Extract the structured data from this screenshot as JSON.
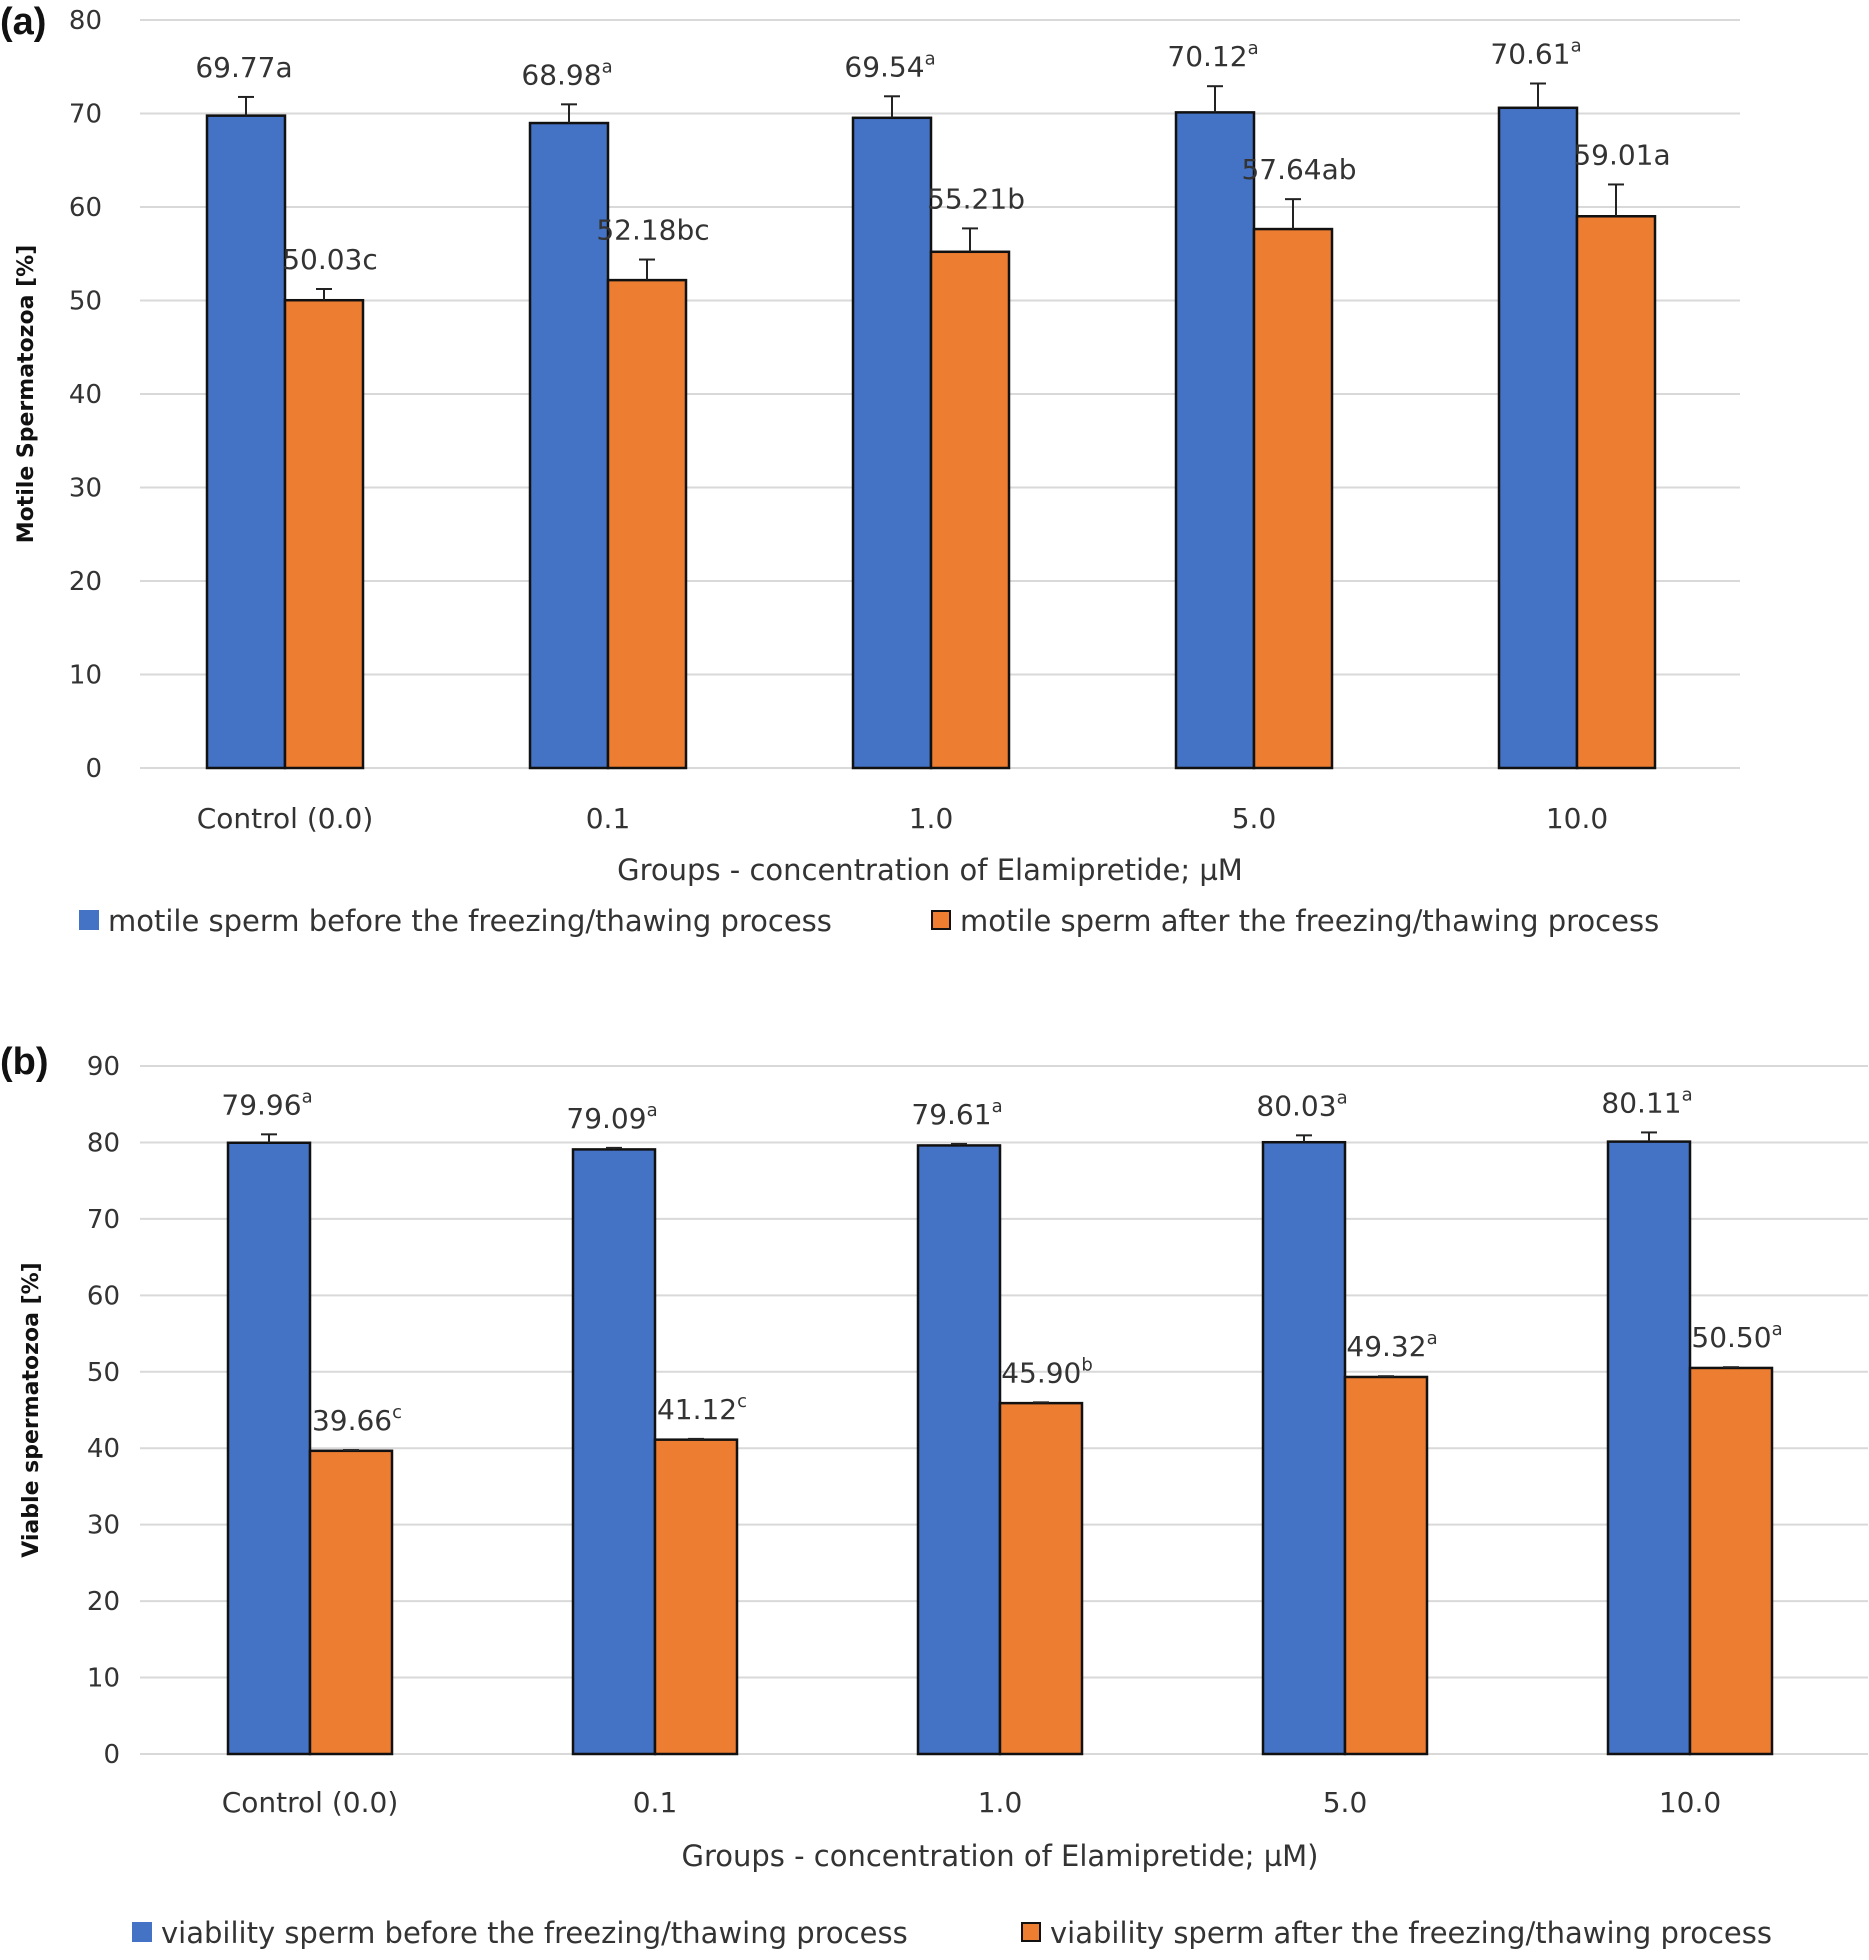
{
  "chart_data": [
    {
      "panel": "(a)",
      "type": "bar",
      "ylabel": "Motile Spermatozoa [%]",
      "xlabel": "Groups - concentration of Elamipretide; µM",
      "ylim": [
        0,
        80
      ],
      "ytick_step": 10,
      "categories": [
        "Control (0.0)",
        "0.1",
        "1.0",
        "5.0",
        "10.0"
      ],
      "grid": true,
      "legend_position": "bottom",
      "series": [
        {
          "name": "motile sperm before the freezing/thawing process",
          "color": "#4472C4",
          "values": [
            69.77,
            68.98,
            69.54,
            70.12,
            70.61
          ],
          "errors": [
            2.0,
            2.0,
            2.3,
            2.8,
            2.6
          ],
          "labels": [
            {
              "num": "69.77",
              "sup": "",
              "suffix": "a"
            },
            {
              "num": "68.98",
              "sup": "a",
              "suffix": ""
            },
            {
              "num": "69.54",
              "sup": "a",
              "suffix": ""
            },
            {
              "num": "70.12",
              "sup": "a",
              "suffix": ""
            },
            {
              "num": "70.61",
              "sup": "a",
              "suffix": ""
            }
          ]
        },
        {
          "name": "motile sperm after the freezing/thawing process",
          "color": "#ED7D31",
          "values": [
            50.03,
            52.18,
            55.21,
            57.64,
            59.01
          ],
          "errors": [
            1.2,
            2.2,
            2.5,
            3.2,
            3.4
          ],
          "labels": [
            {
              "num": "50.03",
              "sup": "",
              "suffix": "c"
            },
            {
              "num": "52.18",
              "sup": "",
              "suffix": "bc"
            },
            {
              "num": "55.21",
              "sup": "",
              "suffix": "b"
            },
            {
              "num": "57.64",
              "sup": "",
              "suffix": "ab"
            },
            {
              "num": "59.01",
              "sup": "",
              "suffix": "a"
            }
          ]
        }
      ]
    },
    {
      "panel": "(b)",
      "type": "bar",
      "ylabel": "Viable spermatozoa [%]",
      "xlabel": "Groups - concentration of Elamipretide; µM)",
      "ylim": [
        0,
        90
      ],
      "ytick_step": 10,
      "categories": [
        "Control (0.0)",
        "0.1",
        "1.0",
        "5.0",
        "10.0"
      ],
      "grid": true,
      "legend_position": "bottom",
      "series": [
        {
          "name": "viability sperm before the freezing/thawing process",
          "color": "#4472C4",
          "values": [
            79.96,
            79.09,
            79.61,
            80.03,
            80.11
          ],
          "errors": [
            1.1,
            0.2,
            0.2,
            0.9,
            1.2
          ],
          "labels": [
            {
              "num": "79.96",
              "sup": "a",
              "suffix": ""
            },
            {
              "num": "79.09",
              "sup": "a",
              "suffix": ""
            },
            {
              "num": "79.61",
              "sup": "a",
              "suffix": ""
            },
            {
              "num": "80.03",
              "sup": "a",
              "suffix": ""
            },
            {
              "num": "80.11",
              "sup": "a",
              "suffix": ""
            }
          ]
        },
        {
          "name": "viability sperm after the freezing/thawing process",
          "color": "#ED7D31",
          "values": [
            39.66,
            41.12,
            45.9,
            49.32,
            50.5
          ],
          "errors": [
            0.1,
            0.1,
            0.1,
            0.1,
            0.1
          ],
          "labels": [
            {
              "num": "39.66",
              "sup": "c",
              "suffix": ""
            },
            {
              "num": "41.12",
              "sup": "c",
              "suffix": ""
            },
            {
              "num": "45.90",
              "sup": "b",
              "suffix": ""
            },
            {
              "num": "49.32",
              "sup": "a",
              "suffix": ""
            },
            {
              "num": "50.50",
              "sup": "a",
              "suffix": ""
            }
          ]
        }
      ]
    }
  ]
}
